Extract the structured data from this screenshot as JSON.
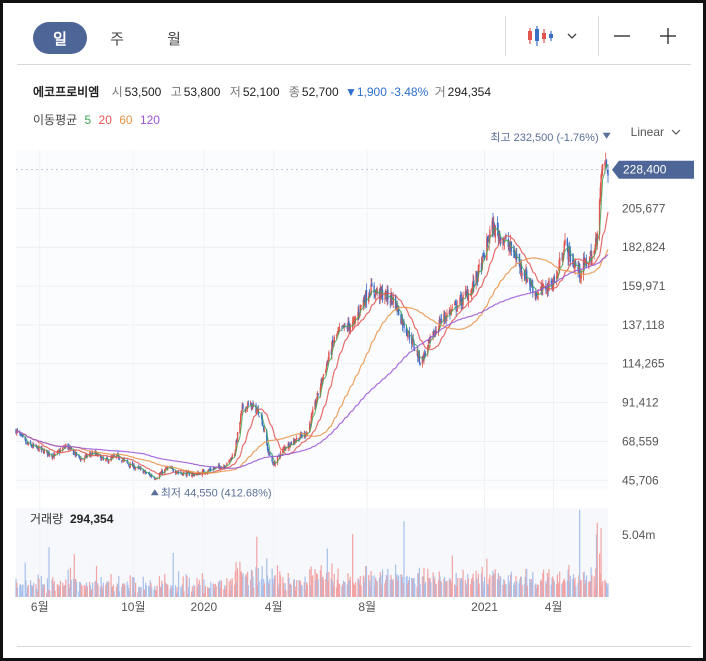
{
  "tabs": [
    {
      "label": "일",
      "active": true
    },
    {
      "label": "주",
      "active": false
    },
    {
      "label": "월",
      "active": false
    }
  ],
  "toolbar": {
    "chart_type_icon": "candlestick-icon",
    "chevron_icon": "chevron-down-icon",
    "zoom_out_icon": "minus-icon",
    "zoom_in_icon": "plus-icon"
  },
  "quote": {
    "name": "에코프로비엠",
    "open_label": "시",
    "open": "53,500",
    "high_label": "고",
    "high": "53,800",
    "low_label": "저",
    "low": "52,100",
    "close_label": "종",
    "close": "52,700",
    "change": "▼1,900",
    "change_pct": "-3.48%",
    "volume_label": "거",
    "volume": "294,354"
  },
  "ma_legend": {
    "label": "이동평균",
    "items": [
      {
        "label": "5",
        "color": "#3aa852"
      },
      {
        "label": "20",
        "color": "#e0554f"
      },
      {
        "label": "60",
        "color": "#e69245"
      },
      {
        "label": "120",
        "color": "#9a53d6"
      }
    ]
  },
  "scale_mode": "Linear",
  "colors": {
    "up": "#e0554f",
    "down": "#3d6ec6",
    "current_price_bg": "#4e6697",
    "annotation": "#5a6f99",
    "volume_up": "#f2a3a3",
    "volume_down": "#a8c0ea"
  },
  "chart_data": {
    "type": "candlestick",
    "price_axis": {
      "ticks": [
        "205,677",
        "182,824",
        "159,971",
        "137,118",
        "114,265",
        "91,412",
        "68,559",
        "45,706"
      ],
      "ylim": [
        40000,
        240000
      ]
    },
    "current_price": "228,400",
    "max_label": "최고 232,500 (-1.76%)",
    "max": {
      "date": "2021-06-04",
      "price": 232500
    },
    "min_label": "최저 44,550 (412.68%)",
    "min": {
      "date": "2019-10-29",
      "price": 44550
    },
    "x_ticks": [
      "6월",
      "10월",
      "2020",
      "4월",
      "8월",
      "2021",
      "4월"
    ],
    "x_range": [
      "2019-05-01",
      "2021-06-11"
    ],
    "volume": {
      "title": "거래량",
      "value": "294,354",
      "axis_label": "5.04m"
    },
    "series": [
      {
        "name": "5",
        "color": "#3aa852"
      },
      {
        "name": "20",
        "color": "#e0554f"
      },
      {
        "name": "60",
        "color": "#e69245"
      },
      {
        "name": "120",
        "color": "#9a53d6"
      }
    ],
    "price_path": [
      [
        "2019-05-01",
        75000
      ],
      [
        "2019-05-15",
        67000
      ],
      [
        "2019-06-01",
        64000
      ],
      [
        "2019-06-20",
        60000
      ],
      [
        "2019-07-05",
        66000
      ],
      [
        "2019-07-25",
        58000
      ],
      [
        "2019-08-10",
        62000
      ],
      [
        "2019-08-25",
        57000
      ],
      [
        "2019-09-10",
        60000
      ],
      [
        "2019-09-25",
        55000
      ],
      [
        "2019-10-10",
        52000
      ],
      [
        "2019-10-29",
        47000
      ],
      [
        "2019-11-15",
        53000
      ],
      [
        "2019-12-01",
        50000
      ],
      [
        "2019-12-20",
        49000
      ],
      [
        "2020-01-10",
        52000
      ],
      [
        "2020-01-31",
        55000
      ],
      [
        "2020-02-10",
        62000
      ],
      [
        "2020-02-20",
        88000
      ],
      [
        "2020-03-02",
        90000
      ],
      [
        "2020-03-15",
        85000
      ],
      [
        "2020-03-25",
        62000
      ],
      [
        "2020-04-01",
        55000
      ],
      [
        "2020-04-15",
        65000
      ],
      [
        "2020-05-01",
        70000
      ],
      [
        "2020-05-15",
        74000
      ],
      [
        "2020-05-25",
        90000
      ],
      [
        "2020-06-05",
        108000
      ],
      [
        "2020-06-20",
        130000
      ],
      [
        "2020-07-01",
        135000
      ],
      [
        "2020-07-15",
        138000
      ],
      [
        "2020-07-25",
        150000
      ],
      [
        "2020-08-05",
        158000
      ],
      [
        "2020-08-20",
        155000
      ],
      [
        "2020-09-05",
        152000
      ],
      [
        "2020-09-15",
        140000
      ],
      [
        "2020-09-28",
        128000
      ],
      [
        "2020-10-10",
        115000
      ],
      [
        "2020-10-20",
        125000
      ],
      [
        "2020-11-05",
        140000
      ],
      [
        "2020-11-25",
        148000
      ],
      [
        "2020-12-15",
        158000
      ],
      [
        "2020-12-30",
        175000
      ],
      [
        "2021-01-10",
        195000
      ],
      [
        "2021-01-25",
        188000
      ],
      [
        "2021-02-10",
        178000
      ],
      [
        "2021-02-25",
        165000
      ],
      [
        "2021-03-10",
        155000
      ],
      [
        "2021-03-25",
        160000
      ],
      [
        "2021-04-05",
        165000
      ],
      [
        "2021-04-15",
        185000
      ],
      [
        "2021-04-25",
        175000
      ],
      [
        "2021-05-05",
        168000
      ],
      [
        "2021-05-15",
        175000
      ],
      [
        "2021-05-25",
        180000
      ],
      [
        "2021-06-01",
        215000
      ],
      [
        "2021-06-04",
        232500
      ],
      [
        "2021-06-11",
        228400
      ]
    ]
  }
}
